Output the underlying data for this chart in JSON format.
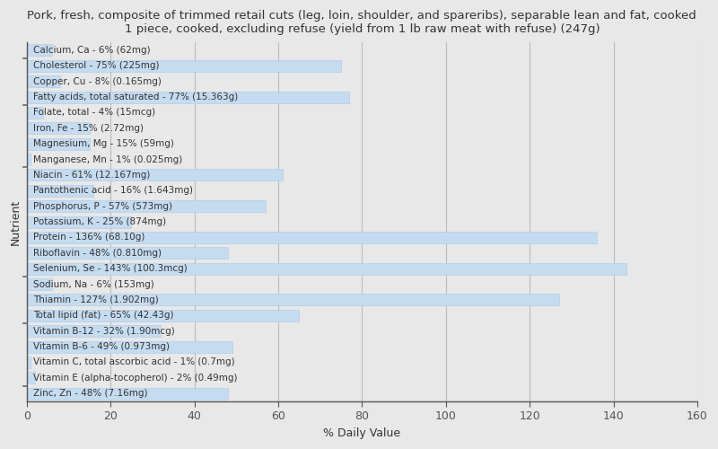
{
  "title": "Pork, fresh, composite of trimmed retail cuts (leg, loin, shoulder, and spareribs), separable lean and fat, cooked\n1 piece, cooked, excluding refuse (yield from 1 lb raw meat with refuse) (247g)",
  "xlabel": "% Daily Value",
  "ylabel": "Nutrient",
  "xlim": [
    0,
    160
  ],
  "xticks": [
    0,
    20,
    40,
    60,
    80,
    100,
    120,
    140,
    160
  ],
  "bar_color": "#c5dbf0",
  "bar_edge_color": "#a8c8e8",
  "background_color": "#e8e8e8",
  "plot_background": "#e8e8e8",
  "nutrients": [
    {
      "label": "Calcium, Ca - 6% (62mg)",
      "value": 6
    },
    {
      "label": "Cholesterol - 75% (225mg)",
      "value": 75
    },
    {
      "label": "Copper, Cu - 8% (0.165mg)",
      "value": 8
    },
    {
      "label": "Fatty acids, total saturated - 77% (15.363g)",
      "value": 77
    },
    {
      "label": "Folate, total - 4% (15mcg)",
      "value": 4
    },
    {
      "label": "Iron, Fe - 15% (2.72mg)",
      "value": 15
    },
    {
      "label": "Magnesium, Mg - 15% (59mg)",
      "value": 15
    },
    {
      "label": "Manganese, Mn - 1% (0.025mg)",
      "value": 1
    },
    {
      "label": "Niacin - 61% (12.167mg)",
      "value": 61
    },
    {
      "label": "Pantothenic acid - 16% (1.643mg)",
      "value": 16
    },
    {
      "label": "Phosphorus, P - 57% (573mg)",
      "value": 57
    },
    {
      "label": "Potassium, K - 25% (874mg)",
      "value": 25
    },
    {
      "label": "Protein - 136% (68.10g)",
      "value": 136
    },
    {
      "label": "Riboflavin - 48% (0.810mg)",
      "value": 48
    },
    {
      "label": "Selenium, Se - 143% (100.3mcg)",
      "value": 143
    },
    {
      "label": "Sodium, Na - 6% (153mg)",
      "value": 6
    },
    {
      "label": "Thiamin - 127% (1.902mg)",
      "value": 127
    },
    {
      "label": "Total lipid (fat) - 65% (42.43g)",
      "value": 65
    },
    {
      "label": "Vitamin B-12 - 32% (1.90mcg)",
      "value": 32
    },
    {
      "label": "Vitamin B-6 - 49% (0.973mg)",
      "value": 49
    },
    {
      "label": "Vitamin C, total ascorbic acid - 1% (0.7mg)",
      "value": 1
    },
    {
      "label": "Vitamin E (alpha-tocopherol) - 2% (0.49mg)",
      "value": 2
    },
    {
      "label": "Zinc, Zn - 48% (7.16mg)",
      "value": 48
    }
  ],
  "title_fontsize": 9.5,
  "axis_label_fontsize": 9,
  "tick_fontsize": 9,
  "bar_label_fontsize": 7.5,
  "tick_color": "#555555",
  "text_color": "#333333",
  "grid_color": "#bbbbbb",
  "group_tick_color": "#666666"
}
